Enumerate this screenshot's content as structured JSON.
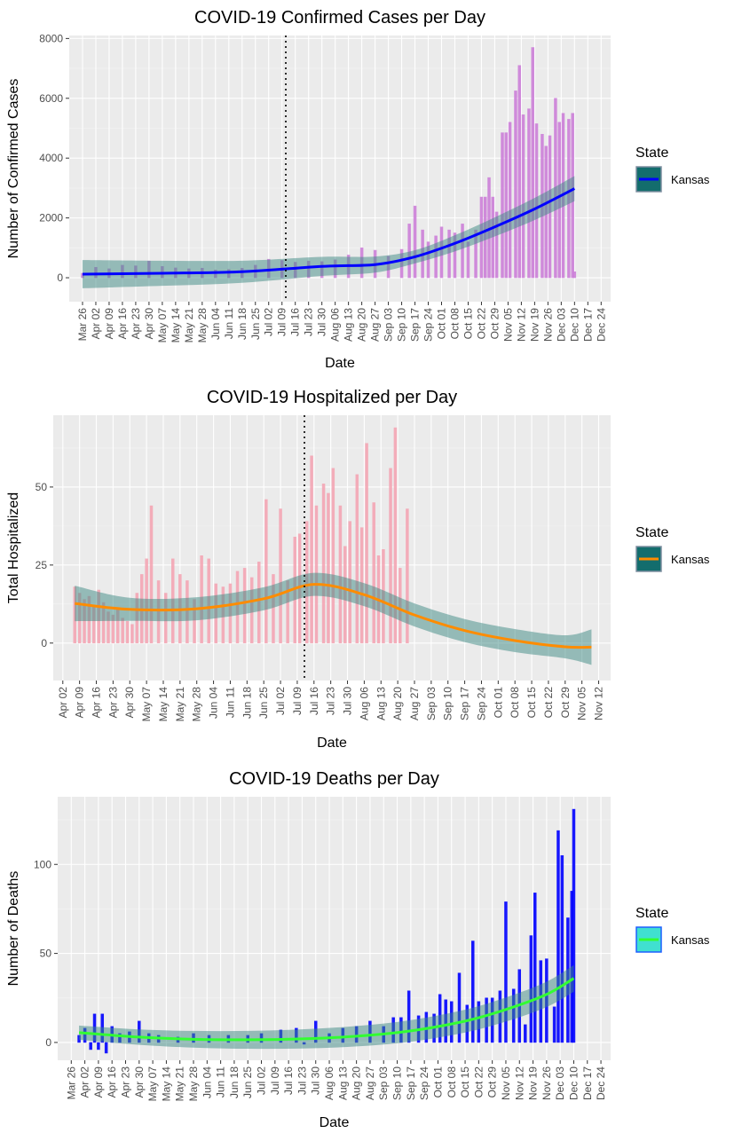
{
  "chart_data": [
    {
      "type": "bar",
      "title": "COVID-19 Confirmed Cases per Day",
      "xlabel": "Date",
      "ylabel": "Number of Confirmed Cases",
      "x_ticks": [
        "Mar 26",
        "Apr 02",
        "Apr 09",
        "Apr 16",
        "Apr 23",
        "Apr 30",
        "May 07",
        "May 14",
        "May 21",
        "May 28",
        "Jun 04",
        "Jun 11",
        "Jun 18",
        "Jun 25",
        "Jul 02",
        "Jul 09",
        "Jul 16",
        "Jul 23",
        "Jul 30",
        "Aug 06",
        "Aug 13",
        "Aug 20",
        "Aug 27",
        "Sep 03",
        "Sep 10",
        "Sep 17",
        "Sep 24",
        "Oct 01",
        "Oct 08",
        "Oct 15",
        "Oct 22",
        "Oct 29",
        "Nov 05",
        "Nov 12",
        "Nov 19",
        "Nov 26",
        "Dec 03",
        "Dec 10",
        "Dec 17",
        "Dec 24"
      ],
      "y_ticks": [
        "0",
        "2000",
        "4000",
        "6000",
        "8000"
      ],
      "ylim": [
        -800,
        8100
      ],
      "vline_date": "Jul 11",
      "legend": {
        "title": "State",
        "label": "Kansas",
        "placement": "right"
      },
      "grid": true,
      "colors": {
        "bars": "#cd80d9",
        "smooth": "#0000ff",
        "band": "#3d8a84",
        "legend_fill": "#136d6d"
      },
      "series": [
        {
          "name": "Kansas",
          "x": [
            "Mar 26",
            "Apr 02",
            "Apr 09",
            "Apr 16",
            "Apr 23",
            "Apr 30",
            "May 07",
            "May 14",
            "May 21",
            "May 28",
            "Jun 04",
            "Jun 11",
            "Jun 18",
            "Jun 25",
            "Jul 02",
            "Jul 09",
            "Jul 16",
            "Jul 23",
            "Jul 30",
            "Aug 06",
            "Aug 13",
            "Aug 20",
            "Aug 27",
            "Sep 03",
            "Sep 10",
            "Sep 14",
            "Sep 17",
            "Sep 21",
            "Sep 24",
            "Sep 28",
            "Oct 01",
            "Oct 05",
            "Oct 08",
            "Oct 12",
            "Oct 15",
            "Oct 19",
            "Oct 22",
            "Oct 24",
            "Oct 26",
            "Oct 28",
            "Oct 30",
            "Nov 02",
            "Nov 04",
            "Nov 06",
            "Nov 09",
            "Nov 11",
            "Nov 13",
            "Nov 16",
            "Nov 18",
            "Nov 20",
            "Nov 23",
            "Nov 25",
            "Nov 27",
            "Nov 30",
            "Dec 02",
            "Dec 04",
            "Dec 07",
            "Dec 09",
            "Dec 10"
          ],
          "values": [
            150,
            350,
            300,
            420,
            400,
            560,
            380,
            330,
            300,
            320,
            260,
            280,
            320,
            420,
            620,
            580,
            520,
            560,
            540,
            600,
            760,
            1000,
            920,
            720,
            950,
            1800,
            2400,
            1600,
            1200,
            1400,
            1700,
            1600,
            1500,
            1800,
            1200,
            1600,
            2700,
            2700,
            3350,
            2700,
            2200,
            4850,
            4850,
            5200,
            6250,
            7100,
            5450,
            5650,
            7700,
            5150,
            4800,
            4400,
            4750,
            6000,
            5200,
            5500,
            5300,
            5500,
            200
          ]
        },
        {
          "name": "Kansas",
          "x": [
            "Mar 26",
            "May 07",
            "Jun 18",
            "Jul 30",
            "Aug 27",
            "Sep 17",
            "Oct 08",
            "Oct 29",
            "Nov 19",
            "Dec 10"
          ],
          "values": [
            120,
            150,
            200,
            380,
            440,
            700,
            1150,
            1700,
            2300,
            2980
          ]
        }
      ]
    },
    {
      "type": "bar",
      "title": "COVID-19 Hospitalized per Day",
      "xlabel": "Date",
      "ylabel": "Total Hospitalized",
      "x_ticks": [
        "Apr 02",
        "Apr 09",
        "Apr 16",
        "Apr 23",
        "Apr 30",
        "May 07",
        "May 14",
        "May 21",
        "May 28",
        "Jun 04",
        "Jun 11",
        "Jun 18",
        "Jun 25",
        "Jul 02",
        "Jul 09",
        "Jul 16",
        "Jul 23",
        "Jul 30",
        "Aug 06",
        "Aug 13",
        "Aug 20",
        "Aug 27",
        "Sep 03",
        "Sep 10",
        "Sep 17",
        "Sep 24",
        "Oct 01",
        "Oct 08",
        "Oct 15",
        "Oct 22",
        "Oct 29",
        "Nov 05",
        "Nov 12"
      ],
      "y_ticks": [
        "0",
        "25",
        "50"
      ],
      "ylim": [
        -12,
        73
      ],
      "vline_date": "Jul 12",
      "legend": {
        "title": "State",
        "label": "Kansas",
        "placement": "right"
      },
      "grid": true,
      "colors": {
        "bars": "#f4a6b4",
        "smooth": "#ff8c00",
        "band": "#3d8a84",
        "legend_fill": "#136d6d"
      },
      "series": [
        {
          "name": "Kansas",
          "x": [
            "Apr 07",
            "Apr 09",
            "Apr 11",
            "Apr 13",
            "Apr 15",
            "Apr 17",
            "Apr 19",
            "Apr 21",
            "Apr 23",
            "Apr 25",
            "Apr 27",
            "Apr 29",
            "May 01",
            "May 03",
            "May 05",
            "May 07",
            "May 09",
            "May 12",
            "May 15",
            "May 18",
            "May 21",
            "May 24",
            "May 27",
            "May 30",
            "Jun 02",
            "Jun 05",
            "Jun 08",
            "Jun 11",
            "Jun 14",
            "Jun 17",
            "Jun 20",
            "Jun 23",
            "Jun 26",
            "Jun 29",
            "Jul 02",
            "Jul 05",
            "Jul 08",
            "Jul 10",
            "Jul 13",
            "Jul 15",
            "Jul 17",
            "Jul 20",
            "Jul 22",
            "Jul 24",
            "Jul 27",
            "Jul 29",
            "Jul 31",
            "Aug 03",
            "Aug 05",
            "Aug 07",
            "Aug 10",
            "Aug 12",
            "Aug 14",
            "Aug 17",
            "Aug 19",
            "Aug 21",
            "Aug 24"
          ],
          "values": [
            18,
            16,
            14,
            15,
            12,
            17,
            13,
            10,
            9,
            11,
            8,
            7,
            6,
            16,
            22,
            27,
            44,
            20,
            16,
            27,
            22,
            20,
            14,
            28,
            27,
            19,
            18,
            19,
            23,
            24,
            21,
            26,
            46,
            22,
            43,
            20,
            34,
            35,
            39,
            60,
            44,
            51,
            48,
            56,
            44,
            31,
            39,
            54,
            37,
            64,
            45,
            28,
            30,
            56,
            69,
            24,
            43
          ]
        },
        {
          "name": "Kansas",
          "x": [
            "Apr 07",
            "Apr 30",
            "May 28",
            "Jun 25",
            "Jul 16",
            "Aug 06",
            "Aug 27",
            "Sep 17",
            "Oct 08",
            "Oct 29",
            "Nov 09"
          ],
          "values": [
            12.7,
            10.8,
            11.0,
            14.2,
            18.8,
            15.5,
            9.0,
            4.0,
            0.8,
            -1.2,
            -1.3
          ]
        }
      ]
    },
    {
      "type": "bar",
      "title": "COVID-19 Deaths per Day",
      "xlabel": "Date",
      "ylabel": "Number of Deaths",
      "x_ticks": [
        "Mar 26",
        "Apr 02",
        "Apr 09",
        "Apr 16",
        "Apr 23",
        "Apr 30",
        "May 07",
        "May 14",
        "May 21",
        "May 28",
        "Jun 04",
        "Jun 11",
        "Jun 18",
        "Jun 25",
        "Jul 02",
        "Jul 09",
        "Jul 16",
        "Jul 23",
        "Jul 30",
        "Aug 06",
        "Aug 13",
        "Aug 20",
        "Aug 27",
        "Sep 03",
        "Sep 10",
        "Sep 17",
        "Sep 24",
        "Oct 01",
        "Oct 08",
        "Oct 15",
        "Oct 22",
        "Oct 29",
        "Nov 05",
        "Nov 12",
        "Nov 19",
        "Nov 26",
        "Dec 03",
        "Dec 10",
        "Dec 17",
        "Dec 24"
      ],
      "y_ticks": [
        "0",
        "50",
        "100"
      ],
      "ylim": [
        -10,
        138
      ],
      "legend": {
        "title": "State",
        "label": "Kansas",
        "placement": "right"
      },
      "grid": true,
      "colors": {
        "bars": "#0000ff",
        "smooth": "#32ff32",
        "band": "#3d8a84",
        "legend_fill": "#40e0d0"
      },
      "series": [
        {
          "name": "Kansas",
          "x": [
            "Mar 30",
            "Apr 02",
            "Apr 05",
            "Apr 07",
            "Apr 09",
            "Apr 11",
            "Apr 13",
            "Apr 16",
            "Apr 20",
            "Apr 25",
            "Apr 30",
            "May 05",
            "May 10",
            "May 20",
            "May 28",
            "Jun 05",
            "Jun 15",
            "Jun 25",
            "Jul 02",
            "Jul 12",
            "Jul 20",
            "Jul 24",
            "Jul 30",
            "Aug 06",
            "Aug 13",
            "Aug 20",
            "Aug 27",
            "Sep 03",
            "Sep 08",
            "Sep 12",
            "Sep 16",
            "Sep 21",
            "Sep 25",
            "Sep 29",
            "Oct 02",
            "Oct 05",
            "Oct 08",
            "Oct 12",
            "Oct 16",
            "Oct 19",
            "Oct 22",
            "Oct 26",
            "Oct 29",
            "Nov 02",
            "Nov 05",
            "Nov 09",
            "Nov 12",
            "Nov 15",
            "Nov 18",
            "Nov 20",
            "Nov 23",
            "Nov 26",
            "Nov 30",
            "Dec 02",
            "Dec 04",
            "Dec 07",
            "Dec 09",
            "Dec 10"
          ],
          "values": [
            4,
            8,
            -4,
            16,
            -4,
            16,
            -6,
            9,
            5,
            6,
            12,
            5,
            4,
            3,
            5,
            4,
            4,
            4,
            5,
            7,
            8,
            -1,
            12,
            5,
            8,
            9,
            12,
            9,
            14,
            14,
            29,
            15,
            17,
            16,
            27,
            24,
            23,
            39,
            21,
            57,
            23,
            25,
            25,
            29,
            79,
            30,
            41,
            10,
            60,
            84,
            46,
            47,
            20,
            119,
            105,
            70,
            85,
            131
          ]
        },
        {
          "name": "Kansas",
          "x": [
            "Mar 30",
            "Apr 30",
            "May 28",
            "Jun 25",
            "Jul 23",
            "Aug 20",
            "Sep 17",
            "Oct 15",
            "Nov 05",
            "Nov 26",
            "Dec 10"
          ],
          "values": [
            5.5,
            3.0,
            1.8,
            1.5,
            2.0,
            3.5,
            6.5,
            12.0,
            18.5,
            27.0,
            36.0
          ]
        }
      ]
    }
  ]
}
